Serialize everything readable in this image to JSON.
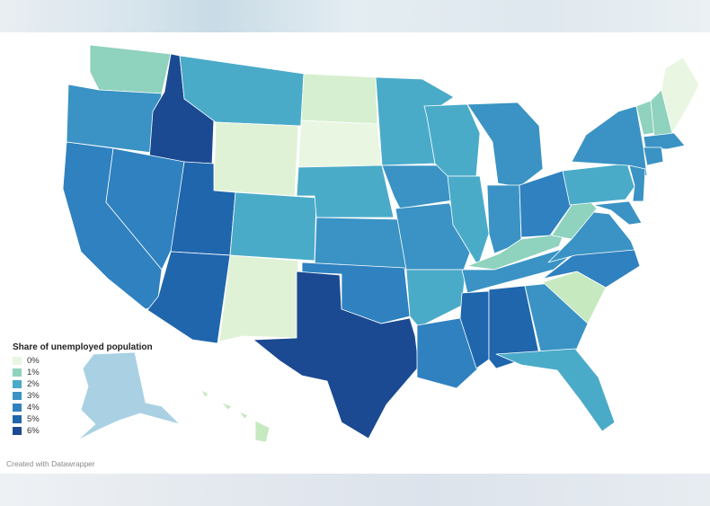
{
  "legend": {
    "title": "Share of unemployed population",
    "items": [
      {
        "label": "0%",
        "color": "#e9f6e2"
      },
      {
        "label": "1%",
        "color": "#8fd2bd"
      },
      {
        "label": "2%",
        "color": "#4aabc9"
      },
      {
        "label": "3%",
        "color": "#3a93c4"
      },
      {
        "label": "4%",
        "color": "#2f81c0"
      },
      {
        "label": "5%",
        "color": "#1f66ad"
      },
      {
        "label": "6%",
        "color": "#1b4a92"
      }
    ]
  },
  "credit": "Created with Datawrapper",
  "states": [
    {
      "name": "WA",
      "color": "#8fd2bd"
    },
    {
      "name": "OR",
      "color": "#3a93c4"
    },
    {
      "name": "CA",
      "color": "#2f81c0"
    },
    {
      "name": "ID",
      "color": "#1b4a92"
    },
    {
      "name": "NV",
      "color": "#2f81c0"
    },
    {
      "name": "MT",
      "color": "#4aabc9"
    },
    {
      "name": "WY",
      "color": "#e0f2d6"
    },
    {
      "name": "UT",
      "color": "#1f66ad"
    },
    {
      "name": "AZ",
      "color": "#1f66ad"
    },
    {
      "name": "CO",
      "color": "#4aabc9"
    },
    {
      "name": "NM",
      "color": "#e0f2d6"
    },
    {
      "name": "ND",
      "color": "#d6efd0"
    },
    {
      "name": "SD",
      "color": "#e9f6e2"
    },
    {
      "name": "NE",
      "color": "#4aabc9"
    },
    {
      "name": "KS",
      "color": "#3a93c4"
    },
    {
      "name": "OK",
      "color": "#2f81c0"
    },
    {
      "name": "TX",
      "color": "#1b4a92"
    },
    {
      "name": "MN",
      "color": "#4aabc9"
    },
    {
      "name": "IA",
      "color": "#3a93c4"
    },
    {
      "name": "MO",
      "color": "#3a93c4"
    },
    {
      "name": "AR",
      "color": "#4aabc9"
    },
    {
      "name": "LA",
      "color": "#2f81c0"
    },
    {
      "name": "WI",
      "color": "#4aabc9"
    },
    {
      "name": "IL",
      "color": "#4aabc9"
    },
    {
      "name": "MI",
      "color": "#3a93c4"
    },
    {
      "name": "IN",
      "color": "#3a93c4"
    },
    {
      "name": "OH",
      "color": "#2f81c0"
    },
    {
      "name": "KY",
      "color": "#8fd2bd"
    },
    {
      "name": "TN",
      "color": "#3a93c4"
    },
    {
      "name": "MS",
      "color": "#1f66ad"
    },
    {
      "name": "AL",
      "color": "#1f66ad"
    },
    {
      "name": "GA",
      "color": "#3a93c4"
    },
    {
      "name": "FL",
      "color": "#4aabc9"
    },
    {
      "name": "SC",
      "color": "#c6e9c0"
    },
    {
      "name": "NC",
      "color": "#2f81c0"
    },
    {
      "name": "VA",
      "color": "#3a93c4"
    },
    {
      "name": "WV",
      "color": "#8fd2bd"
    },
    {
      "name": "PA",
      "color": "#4aabc9"
    },
    {
      "name": "NY",
      "color": "#3a93c4"
    },
    {
      "name": "VT",
      "color": "#8fd2bd"
    },
    {
      "name": "NH",
      "color": "#8fd2bd"
    },
    {
      "name": "ME",
      "color": "#e9f6e2"
    },
    {
      "name": "MA",
      "color": "#3a93c4"
    },
    {
      "name": "CT",
      "color": "#3a93c4"
    },
    {
      "name": "NJ",
      "color": "#3a93c4"
    },
    {
      "name": "MD",
      "color": "#3a93c4"
    },
    {
      "name": "AK",
      "color": "#a9d1e3"
    },
    {
      "name": "HI",
      "color": "#c6e9c0"
    }
  ]
}
